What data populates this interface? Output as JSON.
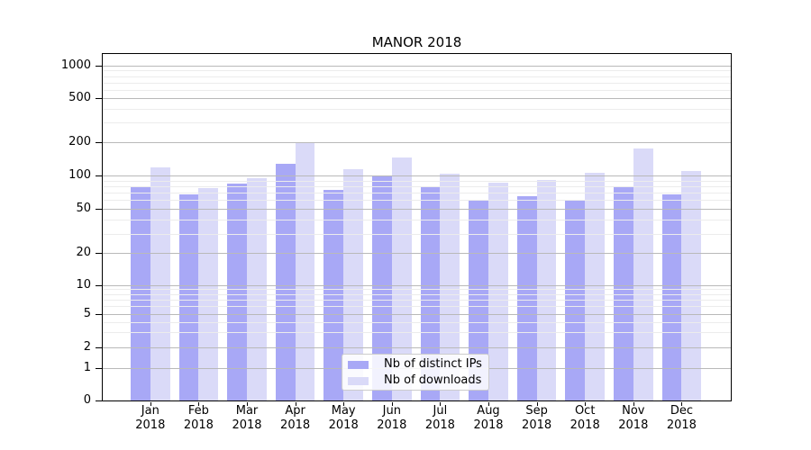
{
  "chart_data": {
    "type": "bar",
    "title": "MANOR 2018",
    "categories": [
      "Jan",
      "Feb",
      "Mar",
      "Apr",
      "May",
      "Jun",
      "Jul",
      "Aug",
      "Sep",
      "Oct",
      "Nov",
      "Dec"
    ],
    "category_year": "2018",
    "series": [
      {
        "name": "Nb of distinct IPs",
        "color": "#a8a8f6",
        "values": [
          80,
          68,
          85,
          128,
          75,
          98,
          79,
          60,
          65,
          60,
          81,
          68
        ]
      },
      {
        "name": "Nb of downloads",
        "color": "#dadaf8",
        "values": [
          120,
          78,
          96,
          200,
          115,
          145,
          104,
          86,
          92,
          106,
          175,
          110
        ]
      }
    ],
    "xlabel": "",
    "ylabel": "",
    "y_scale": "symlog",
    "y_ticks": [
      0,
      1,
      2,
      5,
      10,
      20,
      50,
      100,
      200,
      500,
      1000
    ],
    "y_minor_ticks": [
      3,
      4,
      6,
      7,
      8,
      9,
      30,
      40,
      60,
      70,
      80,
      90,
      300,
      400,
      600,
      700,
      800,
      900
    ],
    "ylim": [
      0,
      1250
    ],
    "grid": true,
    "grid_over_bars": true,
    "legend_position": "lower center",
    "major_grid_color": "#b9b9b9",
    "minor_grid_color": "#ececec"
  }
}
